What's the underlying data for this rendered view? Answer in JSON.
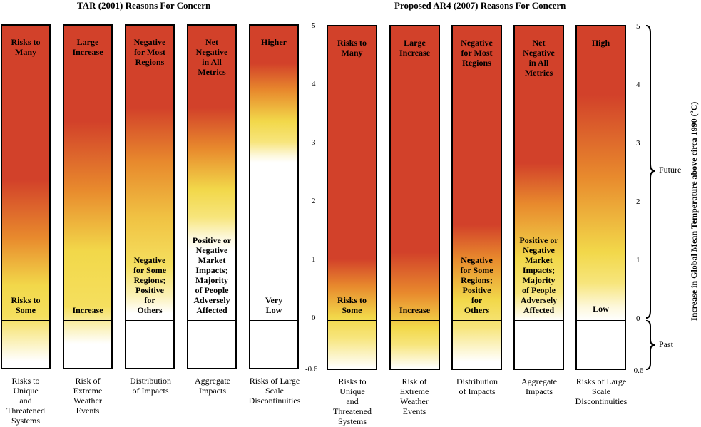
{
  "colors": {
    "red": "#d2412a",
    "orange": "#e8872d",
    "yellow": "#f2d84a",
    "white": "#ffffff"
  },
  "panels": [
    {
      "title": "TAR (2001) Reasons For Concern",
      "bars": [
        {
          "top": "Risks to\nMany",
          "bottom": "Risks to\nSome",
          "caption": "Risks to\nUnique\nand\nThreatened\nSystems"
        },
        {
          "top": "Large\nIncrease",
          "bottom": "Increase",
          "caption": "Risk of\nExtreme\nWeather\nEvents"
        },
        {
          "top": "Negative\nfor Most\nRegions",
          "bottom": "Negative\nfor Some\nRegions;\nPositive\nfor\nOthers",
          "caption": "Distribution\nof Impacts"
        },
        {
          "top": "Net\nNegative\nin All\nMetrics",
          "bottom": "Positive or\nNegative\nMarket\nImpacts;\nMajority\nof People\nAdversely\nAffected",
          "caption": "Aggregate\nImpacts"
        },
        {
          "top": "Higher",
          "bottom": "Very\nLow",
          "caption": "Risks of Large\nScale\nDiscontinuities"
        }
      ]
    },
    {
      "title": "Proposed AR4 (2007) Reasons For Concern",
      "bars": [
        {
          "top": "Risks to\nMany",
          "bottom": "Risks to\nSome",
          "caption": "Risks to\nUnique\nand\nThreatened\nSystems"
        },
        {
          "top": "Large\nIncrease",
          "bottom": "Increase",
          "caption": "Risk of\nExtreme\nWeather\nEvents"
        },
        {
          "top": "Negative\nfor Most\nRegions",
          "bottom": "Negative\nfor Some\nRegions;\nPositive\nfor\nOthers",
          "caption": "Distribution\nof Impacts"
        },
        {
          "top": "Net\nNegative\nin All\nMetrics",
          "bottom": "Positive or\nNegative\nMarket\nImpacts;\nMajority\nof People\nAdversely\nAffected",
          "caption": "Aggregate\nImpacts"
        },
        {
          "top": "High",
          "bottom": "Low",
          "caption": "Risks of Large\nScale\nDiscontinuities"
        }
      ]
    }
  ],
  "axis": {
    "ticks": [
      "5",
      "4",
      "3",
      "2",
      "1",
      "0",
      "-0.6"
    ],
    "label": "Increase in Global Mean Temperature above circa 1990 (ºC)",
    "future": "Future",
    "past": "Past"
  }
}
